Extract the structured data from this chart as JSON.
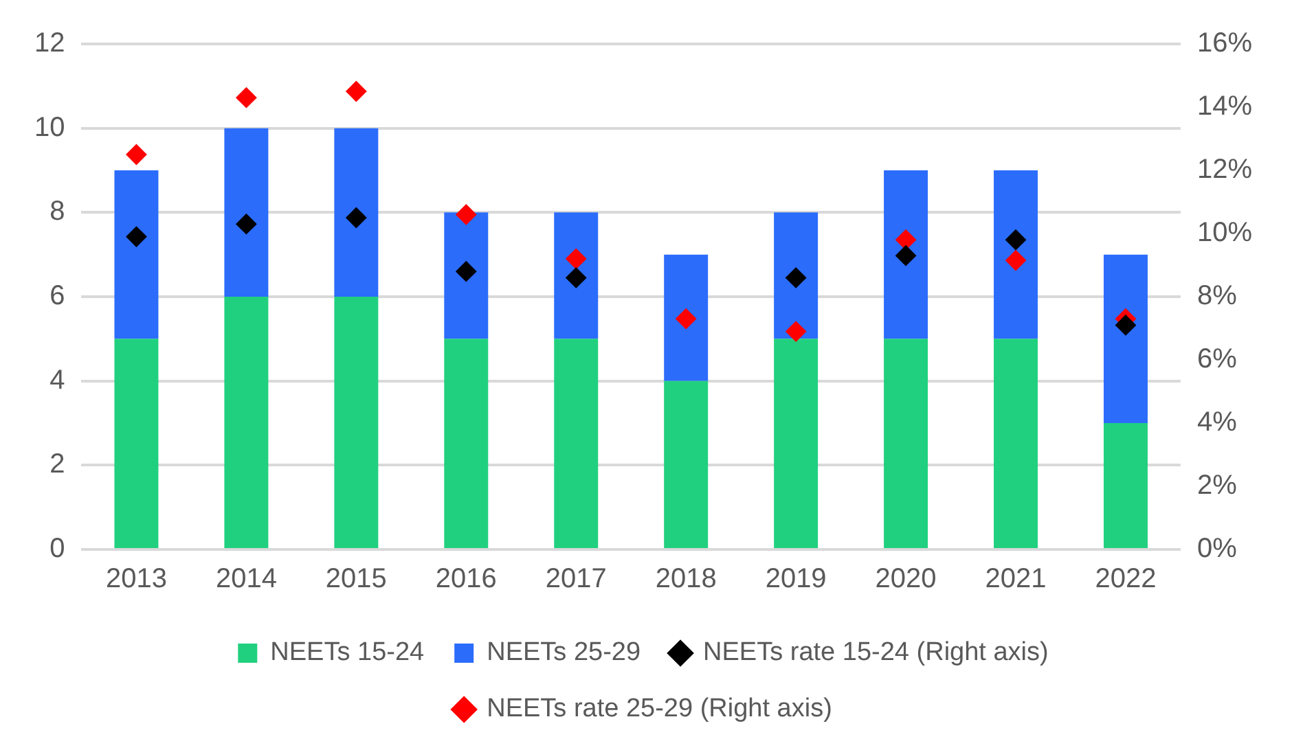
{
  "chart_data": {
    "type": "bar",
    "stacked": true,
    "categories": [
      "2013",
      "2014",
      "2015",
      "2016",
      "2017",
      "2018",
      "2019",
      "2020",
      "2021",
      "2022"
    ],
    "series": [
      {
        "name": "NEETs 15-24",
        "color": "#21d07f",
        "values": [
          5,
          6,
          6,
          5,
          5,
          4,
          5,
          5,
          5,
          3
        ]
      },
      {
        "name": "NEETs 25-29",
        "color": "#2b6cfb",
        "values": [
          4,
          4,
          4,
          3,
          3,
          3,
          3,
          4,
          4,
          4
        ]
      },
      {
        "name": "NEETs rate 15-24 (Right axis)",
        "type": "scatter",
        "axis": "y2",
        "color": "#000000",
        "values": [
          9.9,
          10.3,
          10.5,
          8.8,
          8.6,
          null,
          8.6,
          9.3,
          9.8,
          7.1
        ]
      },
      {
        "name": "NEETs rate 25-29 (Right axis)",
        "type": "scatter",
        "axis": "y2",
        "color": "#ff0000",
        "values": [
          12.5,
          14.3,
          14.5,
          10.6,
          9.2,
          7.3,
          6.9,
          9.8,
          9.15,
          7.3
        ]
      }
    ],
    "ylim": [
      0,
      12
    ],
    "yticks": [
      0,
      2,
      4,
      6,
      8,
      10,
      12
    ],
    "y2lim": [
      0,
      16
    ],
    "y2ticks": [
      {
        "value": 0,
        "label": "0%"
      },
      {
        "value": 2,
        "label": "2%"
      },
      {
        "value": 4,
        "label": "4%"
      },
      {
        "value": 6,
        "label": "6%"
      },
      {
        "value": 8,
        "label": "8%"
      },
      {
        "value": 10,
        "label": "10%"
      },
      {
        "value": 12,
        "label": "12%"
      },
      {
        "value": 14,
        "label": "14%"
      },
      {
        "value": 16,
        "label": "16%"
      }
    ],
    "grid": "y",
    "legend": "bottom",
    "marker": "diamond"
  }
}
